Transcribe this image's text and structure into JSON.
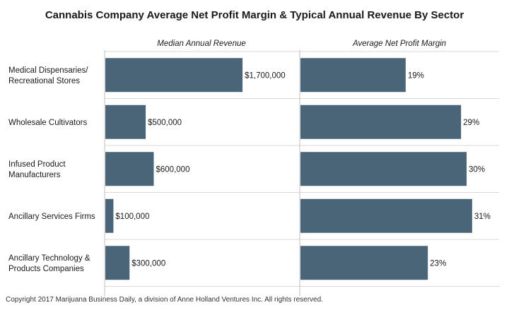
{
  "chart_data": {
    "type": "bar",
    "orientation": "horizontal",
    "title": "Cannabis Company Average Net Profit Margin & Typical Annual Revenue By Sector",
    "categories": [
      [
        "Medical Dispensaries/",
        "Recreational Stores"
      ],
      [
        "Wholesale Cultivators"
      ],
      [
        "Infused Product",
        "Manufacturers"
      ],
      [
        "Ancillary Services Firms"
      ],
      [
        "Ancillary Technology &",
        "Products Companies"
      ]
    ],
    "series": [
      {
        "name": "Median Annual Revenue",
        "values": [
          1700000,
          500000,
          600000,
          100000,
          300000
        ],
        "labels": [
          "$1,700,000",
          "$500,000",
          "$600,000",
          "$100,000",
          "$300,000"
        ],
        "xlim": [
          0,
          2400000
        ]
      },
      {
        "name": "Average Net Profit Margin",
        "values": [
          19,
          29,
          30,
          31,
          23
        ],
        "labels": [
          "19%",
          "29%",
          "30%",
          "31%",
          "23%"
        ],
        "xlim": [
          0,
          36
        ]
      }
    ],
    "bar_color": "#4a6478",
    "grid": true,
    "legend": "none"
  },
  "footer": {
    "copyright": "Copyright 2017 Marijuana Business Daily, a division of Anne Holland Ventures Inc. All rights reserved."
  }
}
